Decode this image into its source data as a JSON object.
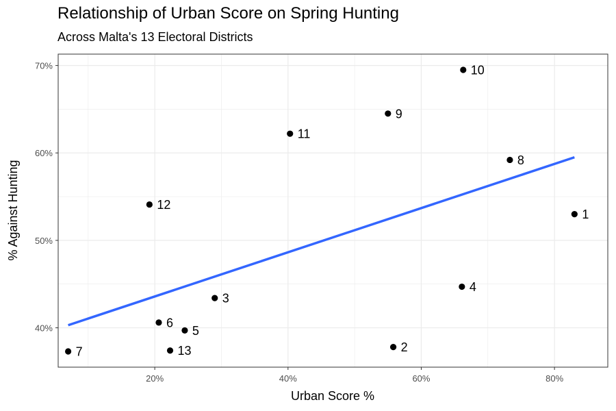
{
  "chart_data": {
    "type": "scatter",
    "title": "Relationship of Urban Score on Spring Hunting",
    "subtitle": "Across Malta's 13 Electoral Districts",
    "xlabel": "Urban Score %",
    "ylabel": "% Against Hunting",
    "xlim": [
      5.5,
      88
    ],
    "ylim": [
      35.5,
      71.3
    ],
    "x_ticks": [
      20,
      40,
      60,
      80
    ],
    "x_tick_labels": [
      "20%",
      "40%",
      "60%",
      "80%"
    ],
    "y_ticks": [
      40,
      50,
      60,
      70
    ],
    "y_tick_labels": [
      "40%",
      "50%",
      "60%",
      "70%"
    ],
    "grid": true,
    "points": [
      {
        "label": "1",
        "x": 83.0,
        "y": 53.0
      },
      {
        "label": "2",
        "x": 55.8,
        "y": 37.8
      },
      {
        "label": "3",
        "x": 29.0,
        "y": 43.4
      },
      {
        "label": "4",
        "x": 66.1,
        "y": 44.7
      },
      {
        "label": "5",
        "x": 24.5,
        "y": 39.7
      },
      {
        "label": "6",
        "x": 20.6,
        "y": 40.6
      },
      {
        "label": "7",
        "x": 7.0,
        "y": 37.3
      },
      {
        "label": "8",
        "x": 73.3,
        "y": 59.2
      },
      {
        "label": "9",
        "x": 55.0,
        "y": 64.5
      },
      {
        "label": "10",
        "x": 66.3,
        "y": 69.5
      },
      {
        "label": "11",
        "x": 40.3,
        "y": 62.2
      },
      {
        "label": "12",
        "x": 19.2,
        "y": 54.1
      },
      {
        "label": "13",
        "x": 22.3,
        "y": 37.4
      }
    ],
    "trend_line": {
      "x": [
        7.0,
        83.0
      ],
      "y": [
        40.3,
        59.5
      ]
    },
    "colors": {
      "points": "#000000",
      "trend_line": "#3366FF",
      "grid": "#ebebeb",
      "panel_border": "#333333"
    }
  }
}
